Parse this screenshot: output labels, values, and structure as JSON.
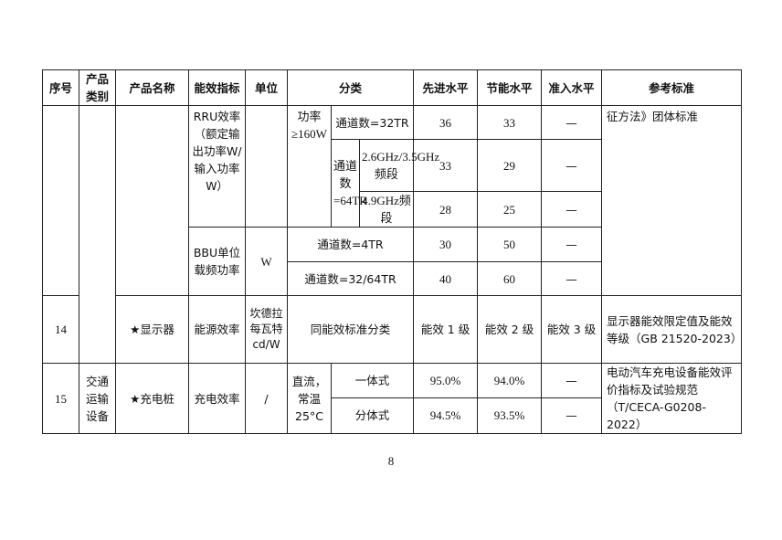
{
  "header": [
    "序号",
    "产品类别",
    "产品名称",
    "能效指标",
    "单位",
    "分类",
    "先进水平",
    "节能水平",
    "准入水平",
    "参考标准"
  ],
  "rru": {
    "indicator": "RRU效率（额定输出功率W/输入功率W）",
    "power_cond": "功率≥160W",
    "ch32": "通道数=32TR",
    "ch64": "通道数=64TR",
    "band1": "2.6GHz/3.5GHz频段",
    "band2": "4.9GHz频段",
    "rows": [
      [
        "36",
        "33",
        "—"
      ],
      [
        "33",
        "29",
        "—"
      ],
      [
        "28",
        "25",
        "—"
      ]
    ],
    "ref": "征方法》团体标准"
  },
  "bbu": {
    "indicator": "BBU单位载频功率",
    "unit": "W",
    "ch4": "通道数=4TR",
    "ch3264": "通道数=32/64TR",
    "rows": [
      [
        "30",
        "50",
        "—"
      ],
      [
        "40",
        "60",
        "—"
      ]
    ]
  },
  "row14": {
    "no": "14",
    "name": "★显示器",
    "indicator": "能源效率",
    "unit": "坎德拉每瓦特cd/W",
    "class": "同能效标准分类",
    "adv": "能效 1 级",
    "save": "能效 2 级",
    "entry": "能效 3 级",
    "ref": "显示器能效限定值及能效等级（GB 21520-2023）"
  },
  "row15": {
    "no": "15",
    "category": "交通运输设备",
    "name": "★充电桩",
    "indicator": "充电效率",
    "unit": "/",
    "cond": "直流，常温25°C",
    "type1": "一体式",
    "type2": "分体式",
    "rows": [
      [
        "95.0%",
        "94.0%",
        "—"
      ],
      [
        "94.5%",
        "93.5%",
        "—"
      ]
    ],
    "ref": "电动汽车充电设备能效评价指标及试验规范（T/CECA-G0208-2022）"
  },
  "page_number": "8"
}
